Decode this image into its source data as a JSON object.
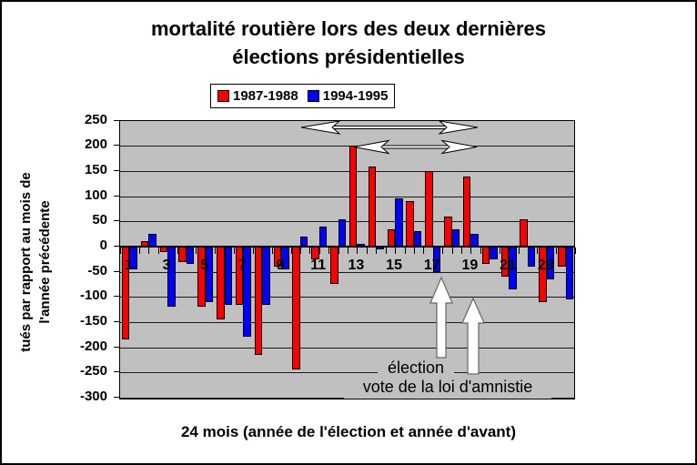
{
  "chart_data": {
    "type": "bar",
    "title_lines": [
      "mortalité routière lors des deux dernières",
      "élections présidentielles"
    ],
    "xlabel": "24 mois (année de l'élection et année d'avant)",
    "ylabel_lines": [
      "tués par rapport au mois de",
      "l'année précédente"
    ],
    "ylim": [
      -300,
      250
    ],
    "yticks": [
      250,
      200,
      150,
      100,
      50,
      0,
      -50,
      -100,
      -150,
      -200,
      -250,
      -300
    ],
    "categories": [
      1,
      2,
      3,
      4,
      5,
      6,
      7,
      8,
      9,
      10,
      11,
      12,
      13,
      14,
      15,
      16,
      17,
      18,
      19,
      20,
      21,
      22,
      23,
      24
    ],
    "xtick_labels_shown": [
      "1",
      "3",
      "5",
      "7",
      "9",
      "11",
      "13",
      "15",
      "17",
      "19",
      "21",
      "23"
    ],
    "series": [
      {
        "name": "1987-1988",
        "color": "#FF0000",
        "values": [
          -185,
          10,
          -10,
          -30,
          -120,
          -145,
          -115,
          -215,
          -40,
          -245,
          -25,
          -75,
          200,
          160,
          35,
          90,
          150,
          60,
          140,
          -35,
          -60,
          55,
          -110,
          -40
        ]
      },
      {
        "name": "1994-1995",
        "color": "#0000FF",
        "values": [
          -45,
          25,
          -120,
          -35,
          -110,
          -115,
          -180,
          -115,
          -45,
          20,
          40,
          55,
          5,
          -5,
          95,
          30,
          -50,
          35,
          25,
          -25,
          -85,
          -40,
          -65,
          -105
        ]
      }
    ],
    "plot_bg": "#C0C0C0",
    "grid": true,
    "legend_position": "top",
    "annotations": [
      {
        "text": "élection"
      },
      {
        "text": "vote de la loi d'amnistie"
      }
    ]
  }
}
